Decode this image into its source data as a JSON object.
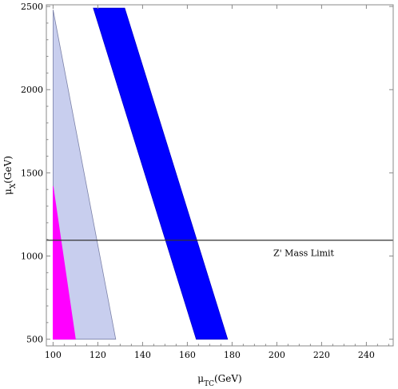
{
  "chart_data": {
    "type": "area",
    "title": "",
    "xlabel": {
      "base": "μ",
      "sub": "TC",
      "unit": "(GeV)"
    },
    "ylabel": {
      "base": "μ",
      "sub": "X",
      "unit": "(GeV)"
    },
    "xlim": [
      97,
      252
    ],
    "ylim": [
      460,
      2510
    ],
    "xticks": [
      100,
      120,
      140,
      160,
      180,
      200,
      220,
      240
    ],
    "yticks": [
      500,
      1000,
      1500,
      2000,
      2500
    ],
    "grid": false,
    "regions": [
      {
        "color": "#c8ceee",
        "stroke": "#7c82a8",
        "points": [
          [
            100,
            2480
          ],
          [
            128,
            500
          ],
          [
            100,
            500
          ]
        ]
      },
      {
        "color": "#ff00ff",
        "stroke": "#ff00ff",
        "points": [
          [
            100,
            1420
          ],
          [
            110,
            500
          ],
          [
            100,
            500
          ]
        ]
      },
      {
        "color": "#0000ff",
        "stroke": "#0000cc",
        "points": [
          [
            118,
            2490
          ],
          [
            132,
            2490
          ],
          [
            178,
            500
          ],
          [
            164,
            500
          ]
        ]
      }
    ],
    "reference_line": {
      "y": 1095,
      "color": "#333333"
    },
    "annotations": [
      {
        "text": "Z' Mass Limit",
        "x": 212,
        "y": 1000
      }
    ]
  }
}
